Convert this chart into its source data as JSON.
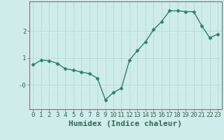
{
  "x": [
    0,
    1,
    2,
    3,
    4,
    5,
    6,
    7,
    8,
    9,
    10,
    11,
    12,
    13,
    14,
    15,
    16,
    17,
    18,
    19,
    20,
    21,
    22,
    23
  ],
  "y": [
    0.75,
    0.92,
    0.9,
    0.8,
    0.6,
    0.55,
    0.48,
    0.42,
    0.25,
    -0.55,
    -0.28,
    -0.12,
    0.92,
    1.28,
    1.6,
    2.05,
    2.35,
    2.75,
    2.75,
    2.72,
    2.72,
    2.2,
    1.75,
    1.88
  ],
  "line_color": "#2d7f6e",
  "marker": "D",
  "marker_size": 2.5,
  "background_color": "#ceecea",
  "grid_color_major": "#b8d8d6",
  "grid_color_minor": "#d4ecea",
  "axis_color": "#777777",
  "xlabel": "Humidex (Indice chaleur)",
  "xlabel_fontsize": 8,
  "xlabel_fontweight": "bold",
  "ytick_labels": [
    "-0",
    "1",
    "2"
  ],
  "ytick_vals": [
    0,
    1,
    2
  ],
  "xticks": [
    0,
    1,
    2,
    3,
    4,
    5,
    6,
    7,
    8,
    9,
    10,
    11,
    12,
    13,
    14,
    15,
    16,
    17,
    18,
    19,
    20,
    21,
    22,
    23
  ],
  "xlim": [
    -0.5,
    23.5
  ],
  "ylim": [
    -0.9,
    3.1
  ],
  "tick_fontsize": 6.5,
  "linewidth": 1.0
}
